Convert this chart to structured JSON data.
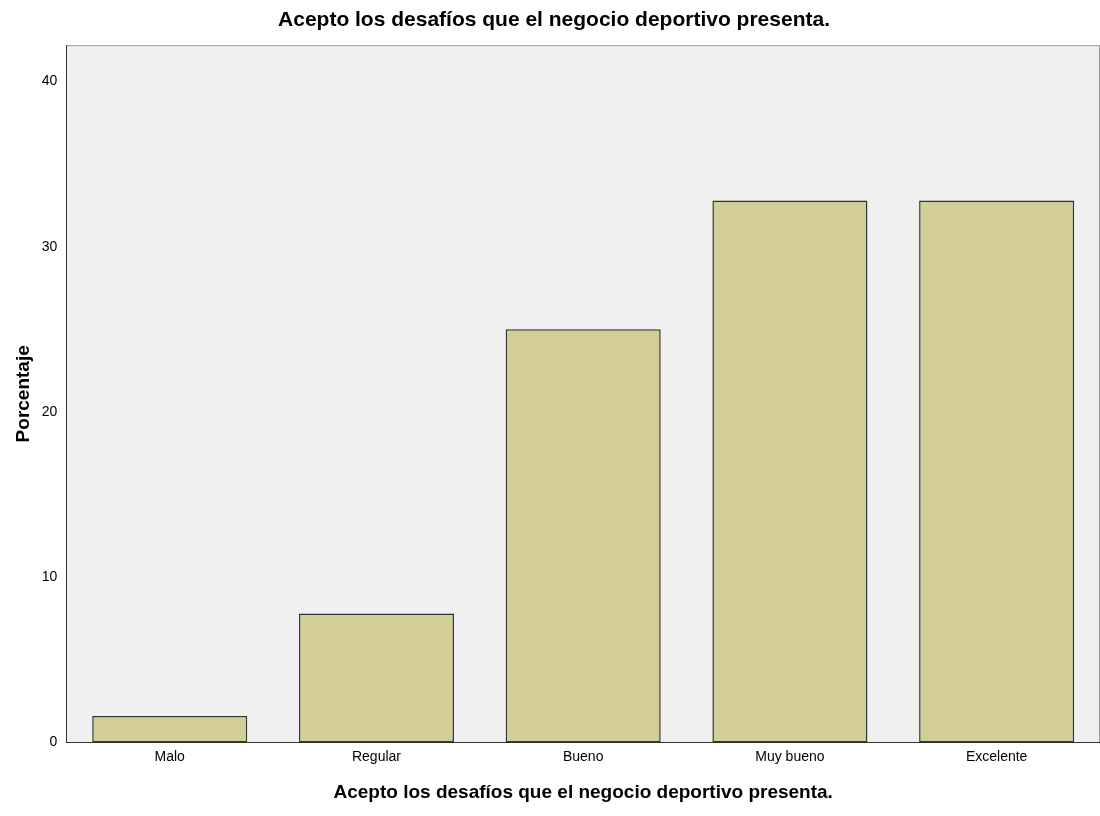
{
  "chart_data": {
    "type": "bar",
    "title": "Acepto los desafíos que el negocio deportivo presenta.",
    "xlabel": "Acepto los desafíos que el negocio deportivo presenta.",
    "ylabel": "Porcentaje",
    "categories": [
      "Malo",
      "Regular",
      "Bueno",
      "Muy bueno",
      "Excelente"
    ],
    "values": [
      1.6,
      7.8,
      25.0,
      32.8,
      32.8
    ],
    "color": "#d3ce97",
    "ylim": [
      0,
      42.2
    ],
    "yticks": [
      0,
      10,
      20,
      30,
      40
    ],
    "grid": false,
    "legend": false
  }
}
